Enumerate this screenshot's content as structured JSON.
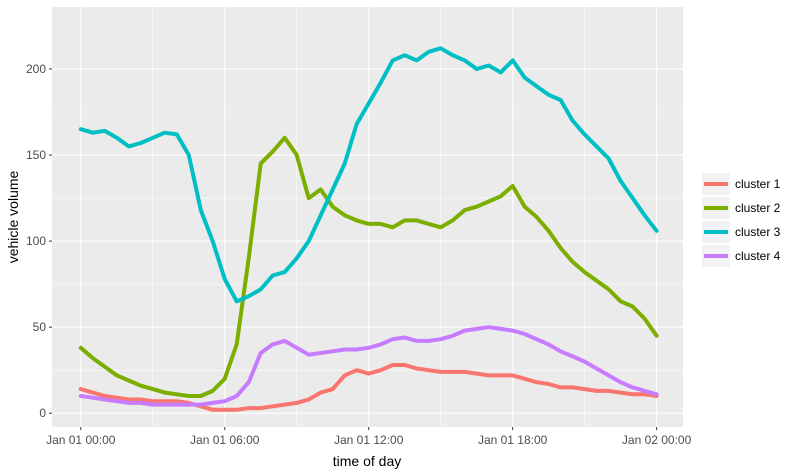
{
  "chart_data": {
    "type": "line",
    "title": "",
    "xlabel": "time of day",
    "ylabel": "vehicle volume",
    "x_ticks": [
      "Jan 01 00:00",
      "Jan 01 06:00",
      "Jan 01 12:00",
      "Jan 01 18:00",
      "Jan 02 00:00"
    ],
    "x_tick_hours": [
      0,
      6,
      12,
      18,
      24
    ],
    "xlim_hours": [
      -1.2,
      25.1
    ],
    "y_ticks": [
      0,
      50,
      100,
      150,
      200
    ],
    "ylim": [
      -8,
      236
    ],
    "grid": true,
    "legend_position": "right",
    "x": [
      0,
      0.5,
      1,
      1.5,
      2,
      2.5,
      3,
      3.5,
      4,
      4.5,
      5,
      5.5,
      6,
      6.5,
      7,
      7.5,
      8,
      8.5,
      9,
      9.5,
      10,
      10.5,
      11,
      11.5,
      12,
      12.5,
      13,
      13.5,
      14,
      14.5,
      15,
      15.5,
      16,
      16.5,
      17,
      17.5,
      18,
      18.5,
      19,
      19.5,
      20,
      20.5,
      21,
      21.5,
      22,
      22.5,
      23,
      23.5,
      24
    ],
    "series": [
      {
        "name": "cluster 1",
        "color": "#F8766D",
        "values": [
          14,
          12,
          10,
          9,
          8,
          8,
          7,
          7,
          7,
          6,
          4,
          2,
          2,
          2,
          3,
          3,
          4,
          5,
          6,
          8,
          12,
          14,
          22,
          25,
          23,
          25,
          28,
          28,
          26,
          25,
          24,
          24,
          24,
          23,
          22,
          22,
          22,
          20,
          18,
          17,
          15,
          15,
          14,
          13,
          13,
          12,
          11,
          11,
          10
        ]
      },
      {
        "name": "cluster 2",
        "color": "#7CAE00",
        "values": [
          38,
          32,
          27,
          22,
          19,
          16,
          14,
          12,
          11,
          10,
          10,
          13,
          20,
          40,
          90,
          145,
          152,
          160,
          150,
          125,
          130,
          120,
          115,
          112,
          110,
          110,
          108,
          112,
          112,
          110,
          108,
          112,
          118,
          120,
          123,
          126,
          132,
          120,
          114,
          106,
          96,
          88,
          82,
          77,
          72,
          65,
          62,
          55,
          45
        ]
      },
      {
        "name": "cluster 3",
        "color": "#00BFC4",
        "values": [
          165,
          163,
          164,
          160,
          155,
          157,
          160,
          163,
          162,
          150,
          118,
          100,
          78,
          65,
          68,
          72,
          80,
          82,
          90,
          100,
          115,
          130,
          145,
          168,
          180,
          192,
          205,
          208,
          205,
          210,
          212,
          208,
          205,
          200,
          202,
          198,
          205,
          195,
          190,
          185,
          182,
          170,
          162,
          155,
          148,
          135,
          125,
          115,
          106
        ]
      },
      {
        "name": "cluster 4",
        "color": "#C77CFF",
        "values": [
          10,
          9,
          8,
          7,
          6,
          6,
          5,
          5,
          5,
          5,
          5,
          6,
          7,
          10,
          18,
          35,
          40,
          42,
          38,
          34,
          35,
          36,
          37,
          37,
          38,
          40,
          43,
          44,
          42,
          42,
          43,
          45,
          48,
          49,
          50,
          49,
          48,
          46,
          43,
          40,
          36,
          33,
          30,
          26,
          22,
          18,
          15,
          13,
          11
        ]
      }
    ]
  }
}
